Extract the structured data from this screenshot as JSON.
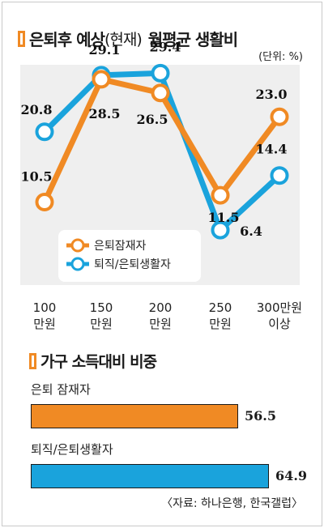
{
  "chart_title": {
    "main": "은퇴후 예상",
    "paren": "(현재)",
    "rest": "월평균 생활비"
  },
  "unit_note": "(단위: %)",
  "chart_data": [
    {
      "type": "line",
      "title": "은퇴후 예상(현재) 월평균 생활비",
      "unit": "%",
      "categories": [
        [
          "100",
          "만원"
        ],
        [
          "150",
          "만원"
        ],
        [
          "200",
          "만원"
        ],
        [
          "250",
          "만원"
        ],
        [
          "300만원",
          "이상"
        ]
      ],
      "ylim": [
        0,
        33
      ],
      "grid": false,
      "legend_position": "bottom-left",
      "series": [
        {
          "name": "은퇴잠재자",
          "color": "#f08a24",
          "values": [
            10.5,
            28.5,
            26.5,
            11.5,
            23.0
          ],
          "labels": [
            "10.5",
            "28.5",
            "26.5",
            "11.5",
            "23.0"
          ]
        },
        {
          "name": "퇴직/은퇴생활자",
          "color": "#1aa3dc",
          "values": [
            20.8,
            29.1,
            29.4,
            6.4,
            14.4
          ],
          "labels": [
            "20.8",
            "29.1",
            "29.4",
            "6.4",
            "14.4"
          ]
        }
      ]
    },
    {
      "type": "bar",
      "orientation": "horizontal",
      "title": "가구 소득대비 비중",
      "categories": [
        "은퇴 잠재자",
        "퇴직/은퇴생활자"
      ],
      "values": [
        56.5,
        64.9
      ],
      "labels": [
        "56.5",
        "64.9"
      ],
      "colors": [
        "#f08a24",
        "#1aa3dc"
      ]
    }
  ],
  "bar_section_title": "가구 소득대비 비중",
  "source": "〈자료: 하나은행, 한국갤럽〉"
}
